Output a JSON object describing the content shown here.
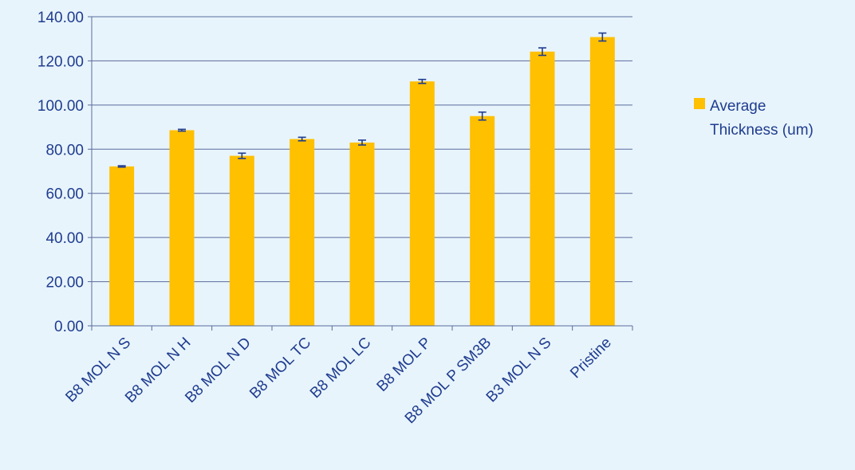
{
  "chart_data": {
    "type": "bar",
    "categories": [
      "B8 MOL N S",
      "B8 MOL N H",
      "B8 MOL N D",
      "B8 MOL TC",
      "B8 MOL LC",
      "B8 MOL P",
      "B8 MOL P SM3B",
      "B3 MOL N S",
      "Pristine"
    ],
    "series": [
      {
        "name": "Average Thickness (um)",
        "values": [
          72.2,
          88.6,
          77.0,
          84.6,
          83.0,
          110.7,
          95.0,
          124.2,
          130.8
        ],
        "error": [
          0.3,
          0.4,
          1.2,
          0.8,
          1.1,
          0.9,
          1.8,
          1.7,
          1.8
        ],
        "color": "#ffc000"
      }
    ],
    "legend": {
      "line1": "Average",
      "line2": "Thickness (um)",
      "placement": "right"
    },
    "yticks": [
      "0.00",
      "20.00",
      "40.00",
      "60.00",
      "80.00",
      "100.00",
      "120.00",
      "140.00"
    ],
    "ylim": [
      0,
      140
    ],
    "grid": true,
    "title": "",
    "xlabel": "",
    "ylabel": "",
    "colors": {
      "background": "#e8f4fc",
      "text": "#1f3c8f",
      "grid": "#5a6b9c",
      "errorbar": "#1f3c8f"
    }
  }
}
